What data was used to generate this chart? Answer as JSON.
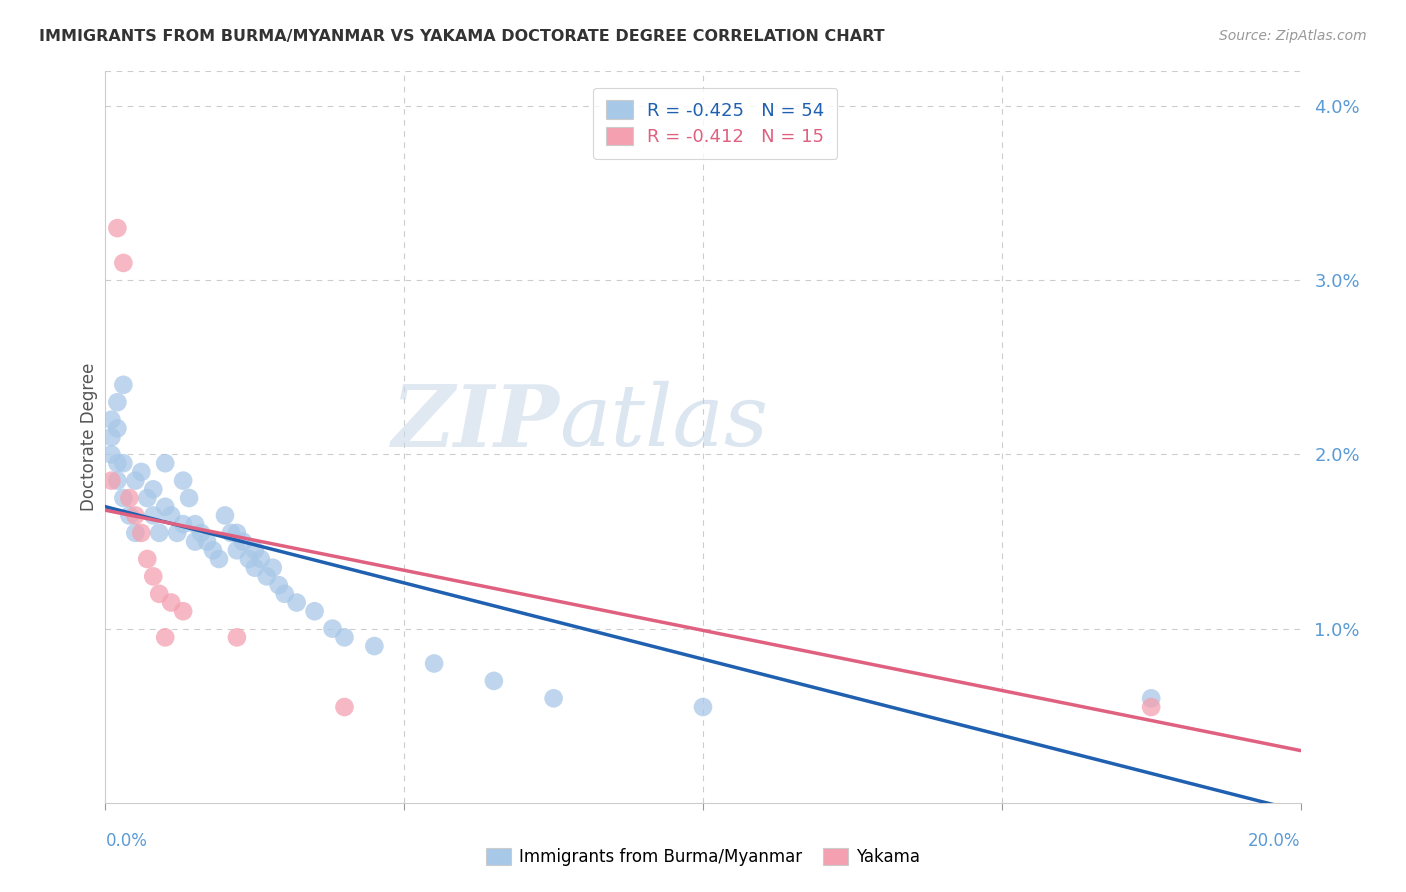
{
  "title": "IMMIGRANTS FROM BURMA/MYANMAR VS YAKAMA DOCTORATE DEGREE CORRELATION CHART",
  "source": "Source: ZipAtlas.com",
  "ylabel": "Doctorate Degree",
  "legend1_text": "R = -0.425   N = 54",
  "legend2_text": "R = -0.412   N = 15",
  "blue_color": "#a8c8e8",
  "pink_color": "#f4a0b0",
  "line_blue": "#2060b0",
  "line_pink": "#e06080",
  "watermark_zip": "ZIP",
  "watermark_atlas": "atlas",
  "blue_scatter_x": [
    0.001,
    0.001,
    0.001,
    0.002,
    0.002,
    0.002,
    0.002,
    0.003,
    0.003,
    0.003,
    0.004,
    0.005,
    0.005,
    0.006,
    0.007,
    0.008,
    0.008,
    0.009,
    0.01,
    0.01,
    0.011,
    0.012,
    0.013,
    0.013,
    0.014,
    0.015,
    0.015,
    0.016,
    0.017,
    0.018,
    0.019,
    0.02,
    0.021,
    0.022,
    0.022,
    0.023,
    0.024,
    0.025,
    0.025,
    0.026,
    0.027,
    0.028,
    0.029,
    0.03,
    0.032,
    0.035,
    0.038,
    0.04,
    0.045,
    0.055,
    0.065,
    0.075,
    0.1,
    0.175
  ],
  "blue_scatter_y": [
    0.022,
    0.021,
    0.02,
    0.023,
    0.0215,
    0.0195,
    0.0185,
    0.024,
    0.0195,
    0.0175,
    0.0165,
    0.0185,
    0.0155,
    0.019,
    0.0175,
    0.018,
    0.0165,
    0.0155,
    0.0195,
    0.017,
    0.0165,
    0.0155,
    0.0185,
    0.016,
    0.0175,
    0.016,
    0.015,
    0.0155,
    0.015,
    0.0145,
    0.014,
    0.0165,
    0.0155,
    0.0155,
    0.0145,
    0.015,
    0.014,
    0.0145,
    0.0135,
    0.014,
    0.013,
    0.0135,
    0.0125,
    0.012,
    0.0115,
    0.011,
    0.01,
    0.0095,
    0.009,
    0.008,
    0.007,
    0.006,
    0.0055,
    0.006
  ],
  "pink_scatter_x": [
    0.001,
    0.002,
    0.003,
    0.004,
    0.005,
    0.006,
    0.007,
    0.008,
    0.009,
    0.01,
    0.011,
    0.013,
    0.022,
    0.04,
    0.175
  ],
  "pink_scatter_y": [
    0.0185,
    0.033,
    0.031,
    0.0175,
    0.0165,
    0.0155,
    0.014,
    0.013,
    0.012,
    0.0095,
    0.0115,
    0.011,
    0.0095,
    0.0055,
    0.0055
  ],
  "blue_line_x0": 0.0,
  "blue_line_y0": 0.017,
  "blue_line_x1": 0.2,
  "blue_line_y1": -0.0005,
  "pink_line_x0": 0.0,
  "pink_line_y0": 0.0168,
  "pink_line_x1": 0.2,
  "pink_line_y1": 0.003,
  "xlim": [
    0.0,
    0.2
  ],
  "ylim": [
    0.0,
    0.042
  ]
}
